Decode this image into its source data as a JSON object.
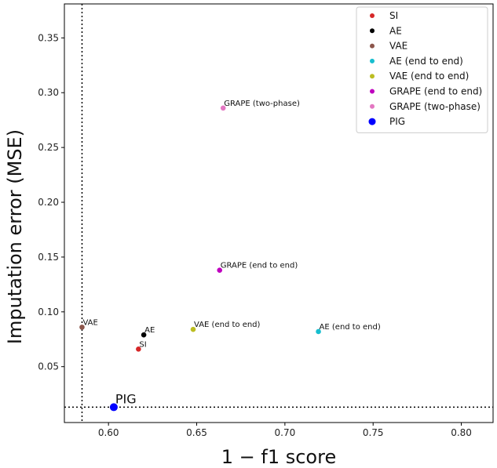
{
  "chart_data": {
    "type": "scatter",
    "xlabel": "1 − f1 score",
    "ylabel": "Imputation error (MSE)",
    "xlim": [
      0.575,
      0.818
    ],
    "ylim": [
      -0.001,
      0.381
    ],
    "xticks": [
      "0.60",
      "0.65",
      "0.70",
      "0.75",
      "0.80"
    ],
    "yticks": [
      "0.05",
      "0.10",
      "0.15",
      "0.20",
      "0.25",
      "0.30",
      "0.35"
    ],
    "grid": false,
    "legend_position": "top-right",
    "reference_lines": [
      {
        "orientation": "vertical",
        "value": 0.585,
        "style": "dotted"
      },
      {
        "orientation": "horizontal",
        "value": 0.013,
        "style": "dotted"
      }
    ],
    "series": [
      {
        "name": "SI",
        "color": "#d62728",
        "x": 0.617,
        "y": 0.066,
        "label": "SI"
      },
      {
        "name": "AE",
        "color": "#000000",
        "x": 0.62,
        "y": 0.079,
        "label": "AE"
      },
      {
        "name": "VAE",
        "color": "#8c564b",
        "x": 0.585,
        "y": 0.086,
        "label": "VAE"
      },
      {
        "name": "AE (end to end)",
        "color": "#17becf",
        "x": 0.719,
        "y": 0.082,
        "label": "AE (end to end)"
      },
      {
        "name": "VAE (end to end)",
        "color": "#bcbd22",
        "x": 0.648,
        "y": 0.084,
        "label": "VAE (end to end)"
      },
      {
        "name": "GRAPE (end to end)",
        "color": "#bf00bf",
        "x": 0.663,
        "y": 0.138,
        "label": "GRAPE (end to end)"
      },
      {
        "name": "GRAPE (two-phase)",
        "color": "#e377c2",
        "x": 0.665,
        "y": 0.286,
        "label": "GRAPE (two-phase)"
      },
      {
        "name": "PIG",
        "color": "#0000ff",
        "x": 0.603,
        "y": 0.013,
        "label": "PIG",
        "highlight": true
      }
    ]
  }
}
